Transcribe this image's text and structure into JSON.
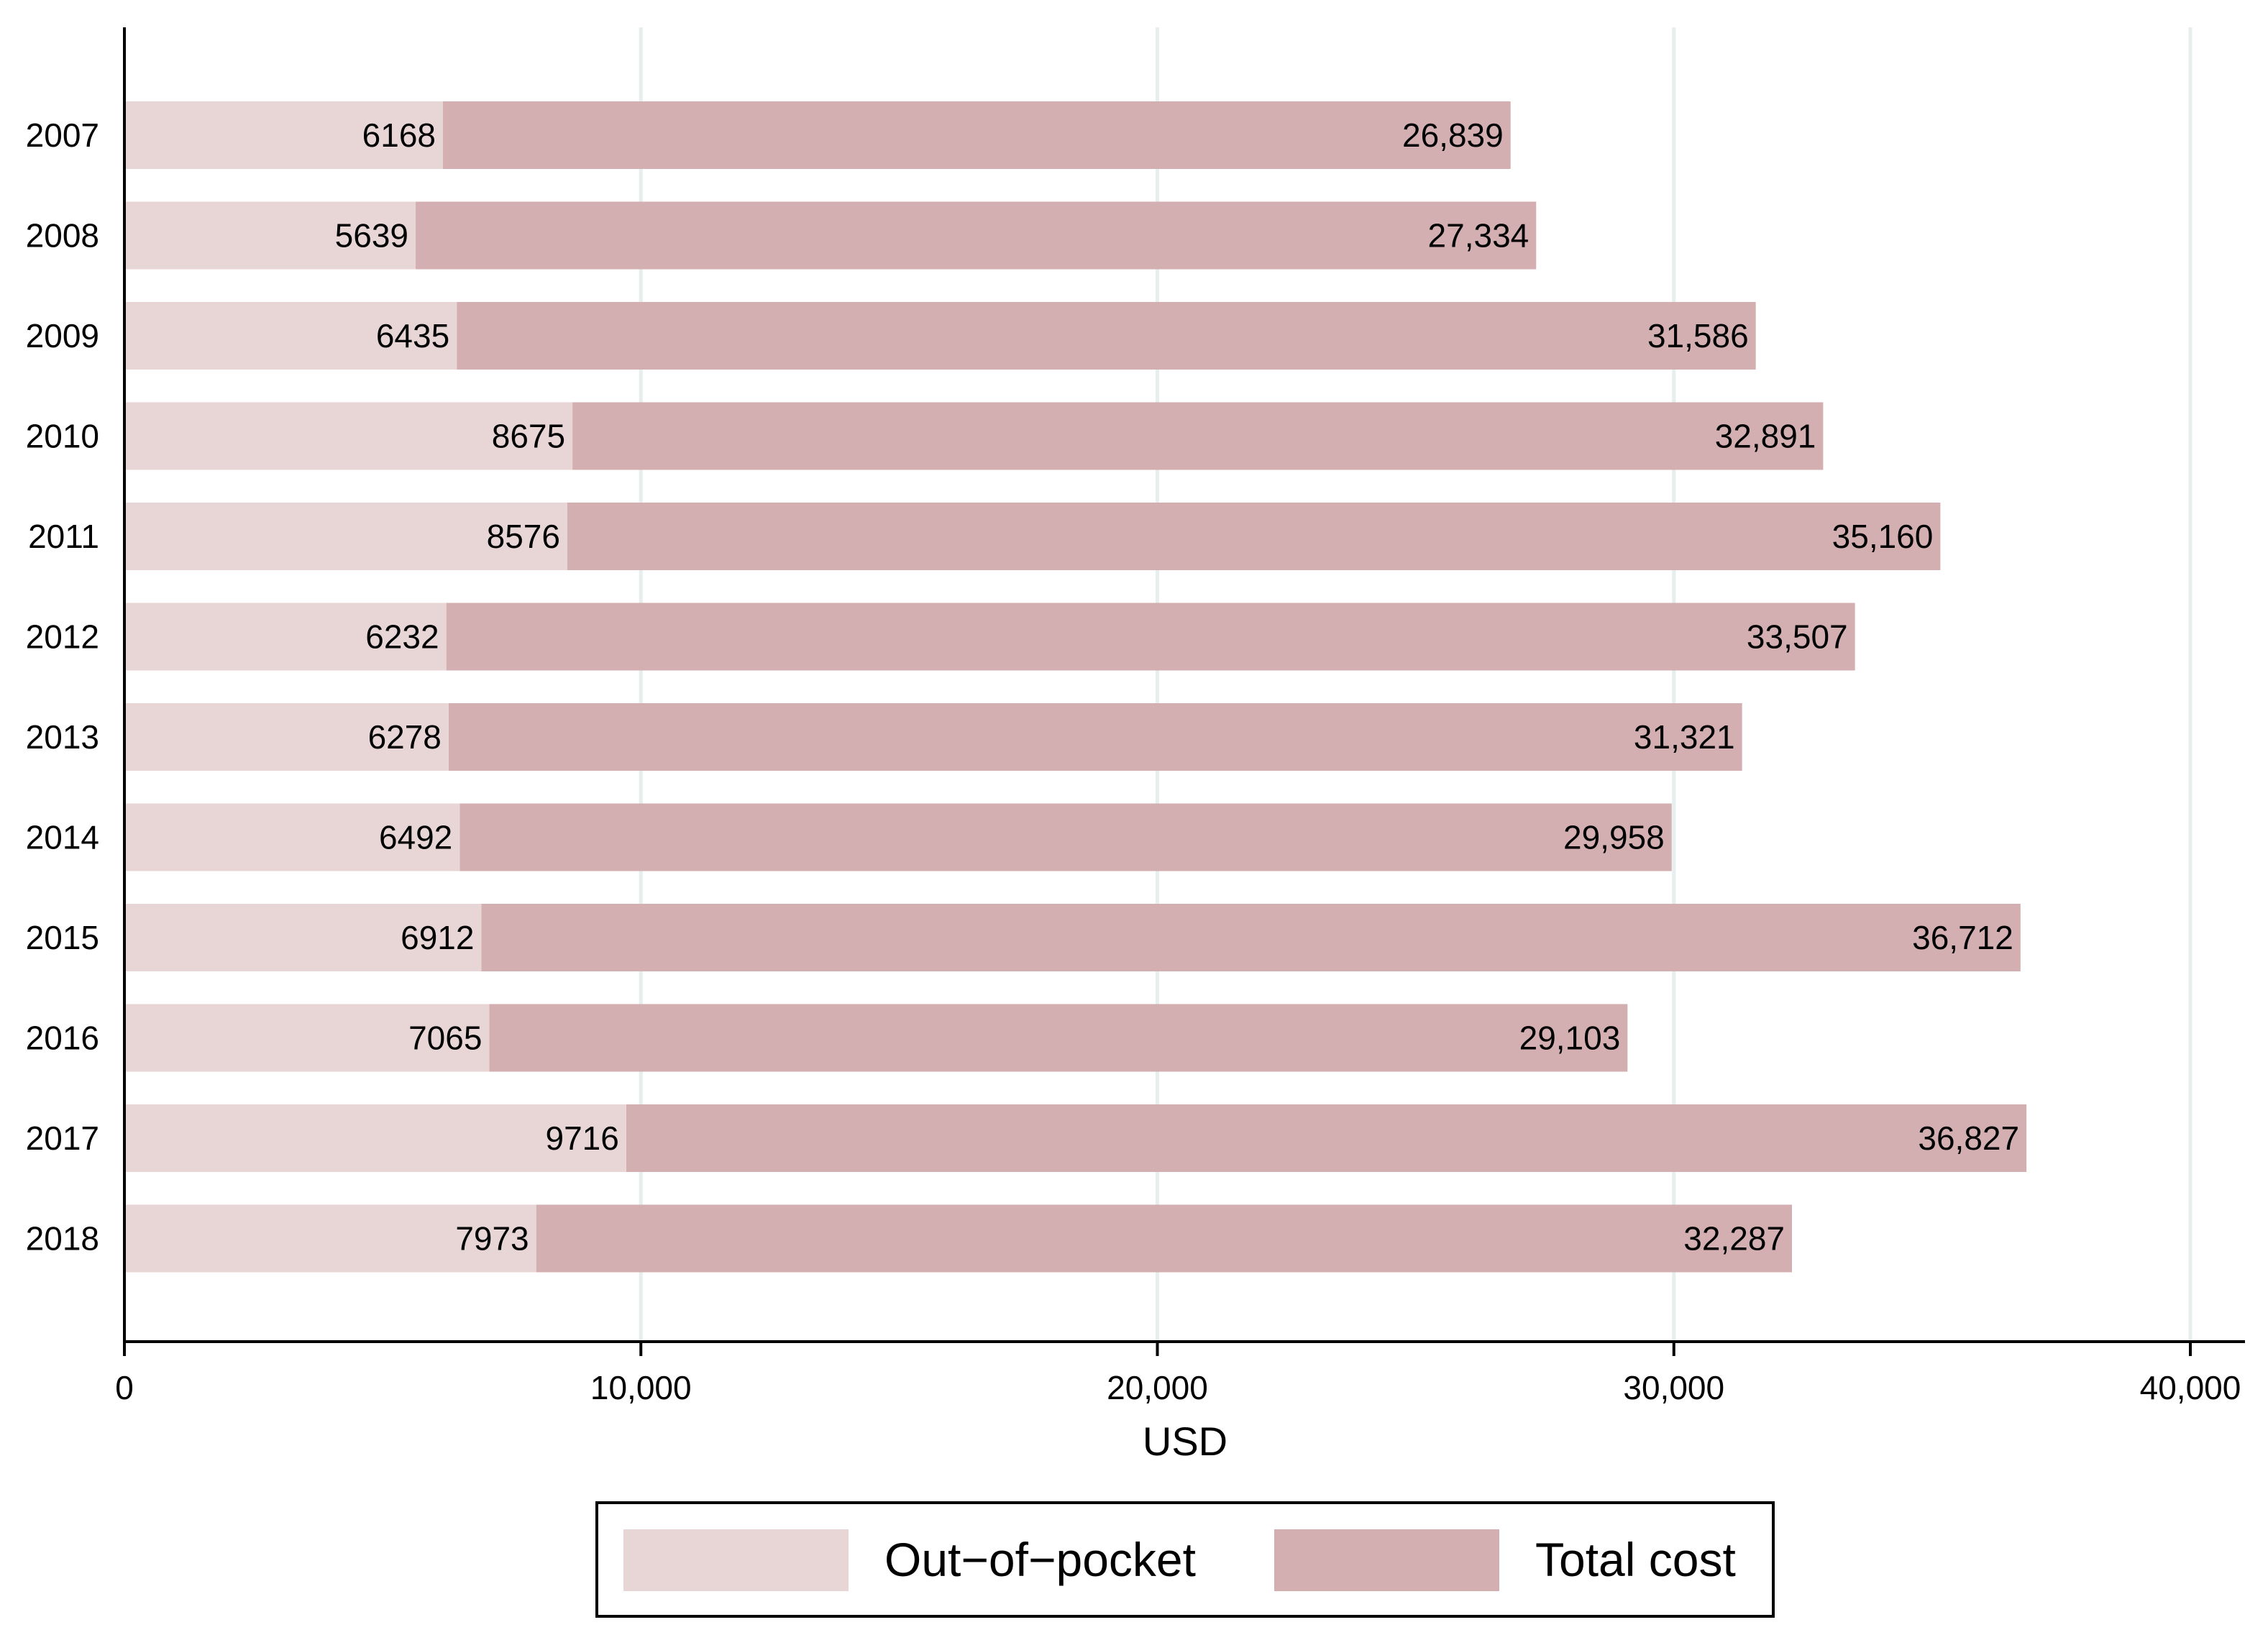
{
  "chart_data": {
    "type": "bar",
    "orientation": "horizontal",
    "stacking": "overlay",
    "title": "",
    "xlabel": "USD",
    "ylabel": "",
    "xlim": [
      0,
      40000
    ],
    "x_ticks": [
      0,
      10000,
      20000,
      30000,
      40000
    ],
    "x_tick_labels": [
      "0",
      "10,000",
      "20,000",
      "30,000",
      "40,000"
    ],
    "grid": true,
    "legend_position": "bottom",
    "categories": [
      "2007",
      "2008",
      "2009",
      "2010",
      "2011",
      "2012",
      "2013",
      "2014",
      "2015",
      "2016",
      "2017",
      "2018"
    ],
    "series": [
      {
        "name": "Out-of-pocket",
        "color": "#e8d6d6",
        "values": [
          6168,
          5639,
          6435,
          8675,
          8576,
          6232,
          6278,
          6492,
          6912,
          7065,
          9716,
          7973
        ],
        "value_labels": [
          "6168",
          "5639",
          "6435",
          "8675",
          "8576",
          "6232",
          "6278",
          "6492",
          "6912",
          "7065",
          "9716",
          "7973"
        ]
      },
      {
        "name": "Total cost",
        "color": "#d3afb1",
        "values": [
          26839,
          27334,
          31586,
          32891,
          35160,
          33507,
          31321,
          29958,
          36712,
          29103,
          36827,
          32287
        ],
        "value_labels": [
          "26,839",
          "27,334",
          "31,586",
          "32,891",
          "35,160",
          "33,507",
          "31,321",
          "29,958",
          "36,712",
          "29,103",
          "36,827",
          "32,287"
        ]
      }
    ],
    "legend": [
      {
        "label": "Out−of−pocket",
        "color": "#e8d6d6"
      },
      {
        "label": "Total cost",
        "color": "#d3afb1"
      }
    ]
  }
}
